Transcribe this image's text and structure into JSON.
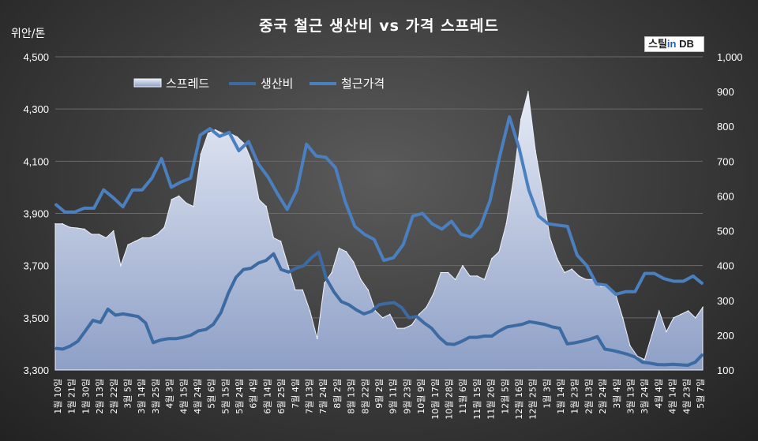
{
  "chart_data": {
    "type": "area",
    "title": "중국 철근 생산비 vs 가격 스프레드",
    "y_unit_label": "위안/톤",
    "logo": {
      "part1": "스틸",
      "part2": "in",
      "part3": " DB"
    },
    "left_axis": {
      "range": [
        3300,
        4500
      ],
      "ticks": [
        "3,300",
        "3,500",
        "3,700",
        "3,900",
        "4,100",
        "4,300",
        "4,500"
      ],
      "tick_values": [
        3300,
        3500,
        3700,
        3900,
        4100,
        4300,
        4500
      ]
    },
    "right_axis": {
      "range": [
        100,
        1000
      ],
      "ticks": [
        "100",
        "200",
        "300",
        "400",
        "500",
        "600",
        "700",
        "800",
        "900",
        "1,000"
      ],
      "tick_values": [
        100,
        200,
        300,
        400,
        500,
        600,
        700,
        800,
        900,
        1000
      ]
    },
    "legend": {
      "position": "top-left",
      "items": [
        "스프레드",
        "생산비",
        "철근가격"
      ]
    },
    "grid": "horizontal",
    "x_tick_labels": [
      "1월 10일",
      "1월 21일",
      "1월 30일",
      "2월 13일",
      "2월 22일",
      "3월 5일",
      "3월 14일",
      "3월 25일",
      "4월 3일",
      "4월 15일",
      "4월 24일",
      "5월 6일",
      "5월 15일",
      "5월 24일",
      "6월 4일",
      "6월 14일",
      "6월 25일",
      "7월 4일",
      "7월 13일",
      "7월 24일",
      "8월 2일",
      "8월 13일",
      "8월 22일",
      "9월 2일",
      "9월 11일",
      "9월 23일",
      "10월 9일",
      "10월 17일",
      "10월 28일",
      "11월 6일",
      "11월 15일",
      "11월 26일",
      "12월 5일",
      "12월 16일",
      "12월 25일",
      "1월 3일",
      "1월 14일",
      "1월 23일",
      "2월 13일",
      "2월 24일",
      "3월 4일",
      "3월 13일",
      "3월 24일",
      "4월 4일",
      "4월 14일",
      "4월 23일",
      "5월 7일"
    ],
    "series": [
      {
        "name": "스프레드",
        "axis": "right",
        "color": "#c9d3ea",
        "values": [
          520,
          520,
          510,
          508,
          505,
          490,
          490,
          480,
          500,
          400,
          460,
          470,
          480,
          480,
          490,
          510,
          590,
          600,
          580,
          570,
          720,
          780,
          790,
          780,
          780,
          770,
          750,
          700,
          590,
          570,
          480,
          470,
          400,
          330,
          330,
          270,
          190,
          350,
          380,
          450,
          440,
          410,
          360,
          330,
          270,
          250,
          260,
          220,
          220,
          230,
          260,
          280,
          320,
          380,
          380,
          360,
          400,
          370,
          370,
          360,
          420,
          440,
          520,
          650,
          820,
          900,
          730,
          610,
          480,
          420,
          380,
          390,
          370,
          360,
          360,
          340,
          340,
          320,
          250,
          170,
          140,
          130,
          200,
          270,
          210,
          250,
          260,
          270,
          250,
          280
        ]
      },
      {
        "name": "생산비",
        "axis": "left",
        "color": "#3c6aa3",
        "values": [
          3383,
          3380,
          3392,
          3410,
          3450,
          3490,
          3482,
          3533,
          3510,
          3515,
          3510,
          3505,
          3480,
          3405,
          3415,
          3420,
          3420,
          3425,
          3433,
          3450,
          3455,
          3475,
          3520,
          3595,
          3655,
          3685,
          3690,
          3710,
          3720,
          3745,
          3685,
          3675,
          3690,
          3700,
          3730,
          3752,
          3650,
          3600,
          3562,
          3550,
          3530,
          3515,
          3525,
          3550,
          3555,
          3558,
          3540,
          3500,
          3505,
          3480,
          3460,
          3425,
          3400,
          3398,
          3410,
          3425,
          3425,
          3430,
          3430,
          3450,
          3465,
          3470,
          3475,
          3485,
          3480,
          3475,
          3465,
          3460,
          3400,
          3404,
          3410,
          3418,
          3428,
          3380,
          3375,
          3368,
          3360,
          3350,
          3330,
          3326,
          3321,
          3320,
          3322,
          3320,
          3318,
          3330,
          3360
        ]
      },
      {
        "name": "철근가격",
        "axis": "left",
        "color": "#4a7fc0",
        "values": [
          3936,
          3905,
          3905,
          3920,
          3920,
          3990,
          3960,
          3925,
          3990,
          3990,
          4035,
          4110,
          4000,
          4020,
          4035,
          4200,
          4225,
          4195,
          4210,
          4140,
          4175,
          4090,
          4040,
          3975,
          3915,
          3990,
          4165,
          4120,
          4115,
          4075,
          3945,
          3850,
          3820,
          3800,
          3720,
          3730,
          3780,
          3890,
          3900,
          3860,
          3840,
          3870,
          3820,
          3810,
          3850,
          3950,
          4120,
          4270,
          4150,
          3990,
          3890,
          3860,
          3855,
          3850,
          3740,
          3700,
          3630,
          3625,
          3590,
          3600,
          3600,
          3670,
          3670,
          3650,
          3640,
          3640,
          3660,
          3630
        ]
      }
    ]
  }
}
